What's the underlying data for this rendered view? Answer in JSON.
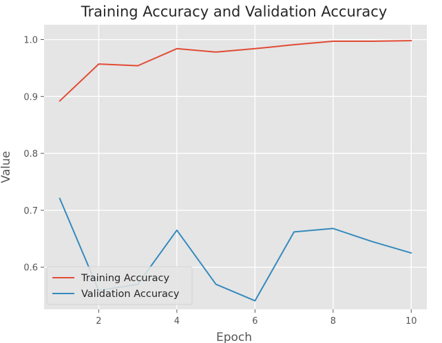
{
  "chart_data": {
    "type": "line",
    "title": "Training Accuracy and Validation Accuracy",
    "xlabel": "Epoch",
    "ylabel": "Value",
    "x": [
      1,
      2,
      3,
      4,
      5,
      6,
      7,
      8,
      9,
      10
    ],
    "xlim": [
      0.6,
      10.4
    ],
    "ylim": [
      0.526,
      1.026
    ],
    "xticks": [
      2,
      4,
      6,
      8,
      10
    ],
    "yticks": [
      0.6,
      0.7,
      0.8,
      0.9,
      1.0
    ],
    "ytick_labels": [
      "0.6",
      "0.7",
      "0.8",
      "0.9",
      "1.0"
    ],
    "grid": true,
    "legend_position": "lower-left",
    "series": [
      {
        "name": "Training Accuracy",
        "color": "#E24A33",
        "values": [
          0.892,
          0.957,
          0.954,
          0.984,
          0.978,
          0.984,
          0.991,
          0.997,
          0.997,
          0.998
        ]
      },
      {
        "name": "Validation Accuracy",
        "color": "#348ABD",
        "values": [
          0.721,
          0.559,
          0.57,
          0.665,
          0.57,
          0.541,
          0.662,
          0.668,
          0.645,
          0.625
        ]
      }
    ]
  }
}
